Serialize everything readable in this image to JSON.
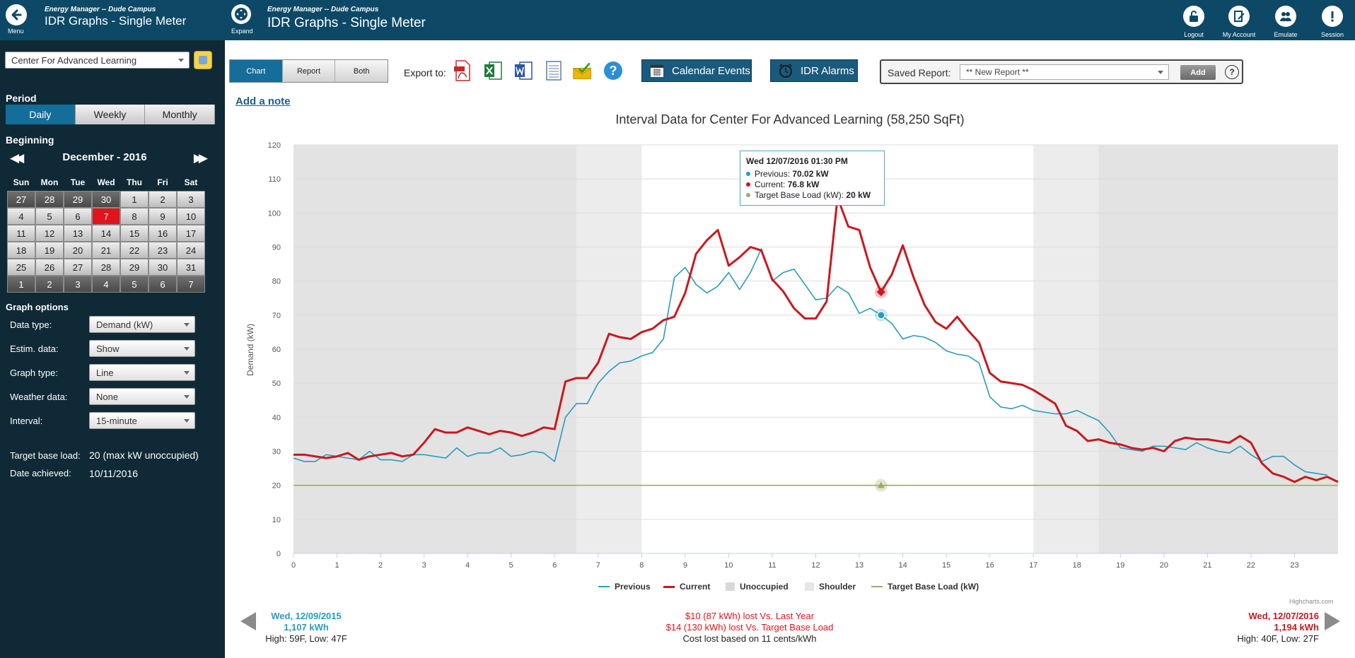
{
  "sidebar": {
    "menu_label": "Menu",
    "app_subtitle": "Energy Manager -- Dude Campus",
    "app_title": "IDR Graphs - Single Meter",
    "building": "Center For Advanced Learning",
    "period_heading": "Period",
    "period_tabs": [
      "Daily",
      "Weekly",
      "Monthly"
    ],
    "period_selected": "Daily",
    "beginning_heading": "Beginning",
    "calendar": {
      "month_label": "December - 2016",
      "prev_label": "◀◀",
      "next_label": "▶▶",
      "weekdays": [
        "Sun",
        "Mon",
        "Tue",
        "Wed",
        "Thu",
        "Fri",
        "Sat"
      ],
      "weeks": [
        [
          "27",
          "28",
          "29",
          "30",
          "1",
          "2",
          "3"
        ],
        [
          "4",
          "5",
          "6",
          "7",
          "8",
          "9",
          "10"
        ],
        [
          "11",
          "12",
          "13",
          "14",
          "15",
          "16",
          "17"
        ],
        [
          "18",
          "19",
          "20",
          "21",
          "22",
          "23",
          "24"
        ],
        [
          "25",
          "26",
          "27",
          "28",
          "29",
          "30",
          "31"
        ],
        [
          "1",
          "2",
          "3",
          "4",
          "5",
          "6",
          "7"
        ]
      ],
      "selected_day": "7"
    },
    "graph_options_heading": "Graph options",
    "options": [
      {
        "label": "Data type:",
        "value": "Demand (kW)"
      },
      {
        "label": "Estim. data:",
        "value": "Show"
      },
      {
        "label": "Graph type:",
        "value": "Line"
      },
      {
        "label": "Weather data:",
        "value": "None"
      },
      {
        "label": "Interval:",
        "value": "15-minute"
      }
    ],
    "target_base_load_label": "Target base load:",
    "target_base_load_value": "20 (max kW unoccupied)",
    "date_achieved_label": "Date achieved:",
    "date_achieved_value": "10/11/2016"
  },
  "header": {
    "expand_label": "Expand",
    "subtitle": "Energy Manager -- Dude Campus",
    "title": "IDR Graphs - Single Meter",
    "buttons": [
      "Logout",
      "My Account",
      "Emulate",
      "Session"
    ]
  },
  "toolbar": {
    "view_tabs": [
      "Chart",
      "Report",
      "Both"
    ],
    "view_selected": "Chart",
    "export_label": "Export to:",
    "export_icons": [
      "pdf-icon",
      "excel-icon",
      "word-icon",
      "csv-icon",
      "email-icon",
      "help-icon"
    ],
    "calendar_events": "Calendar Events",
    "idr_alarms": "IDR Alarms",
    "saved_report_label": "Saved Report:",
    "saved_report_value": "** New Report **",
    "add_label": "Add",
    "help_label": "?"
  },
  "add_note": "Add a note",
  "tooltip": {
    "header": "Wed 12/07/2016 01:30 PM",
    "rows": [
      {
        "label": "Previous:",
        "value": "70.02 kW",
        "color": "#2a9bbd"
      },
      {
        "label": "Current:",
        "value": "76.8 kW",
        "color": "#c8191f"
      },
      {
        "label": "Target Base Load (kW):",
        "value": "20 kW",
        "color": "#9aaf65"
      }
    ]
  },
  "legend": [
    "Previous",
    "Current",
    "Unoccupied",
    "Shoulder",
    "Target Base Load (kW)"
  ],
  "credit": "Highcharts.com",
  "footer": {
    "left": {
      "date": "Wed, 12/09/2015",
      "energy": "1,107 kWh",
      "weather": "High: 59F, Low: 47F"
    },
    "center": {
      "line1": "$10 (87 kWh) lost Vs. Last Year",
      "line2": "$14 (130 kWh) lost Vs. Target Base Load",
      "line3": "Cost lost based on 11 cents/kWh"
    },
    "right": {
      "date": "Wed, 12/07/2016",
      "energy": "1,194 kWh",
      "weather": "High: 40F, Low: 27F"
    }
  },
  "colors": {
    "previous": "#2a9bbd",
    "current": "#c8191f",
    "target": "#9aaf65",
    "unoccupied_band": "#e3e3e3",
    "shoulder_band": "#ececec",
    "header_bg": "#0d4966",
    "sidebar_bg": "#0f2a36"
  },
  "chart_data": {
    "type": "line",
    "title": "Interval Data for Center For Advanced Learning (58,250 SqFt)",
    "xlabel": "",
    "ylabel": "Demand (kW)",
    "xlim": [
      0,
      24
    ],
    "ylim": [
      0,
      120
    ],
    "x_ticks": [
      0,
      1,
      2,
      3,
      4,
      5,
      6,
      7,
      8,
      9,
      10,
      11,
      12,
      13,
      14,
      15,
      16,
      17,
      18,
      19,
      20,
      21,
      22,
      23
    ],
    "y_ticks": [
      0,
      10,
      20,
      30,
      40,
      50,
      60,
      70,
      80,
      90,
      100,
      110,
      120
    ],
    "bands": [
      {
        "name": "Unoccupied",
        "from": 0,
        "to": 6.5
      },
      {
        "name": "Shoulder",
        "from": 6.5,
        "to": 8
      },
      {
        "name": "Shoulder",
        "from": 17,
        "to": 18.5
      },
      {
        "name": "Unoccupied",
        "from": 18.5,
        "to": 24
      }
    ],
    "series": [
      {
        "name": "Previous",
        "interval_hours": 0.25,
        "values": [
          28,
          27,
          27,
          29,
          28.5,
          28,
          27.5,
          30,
          27.5,
          27.5,
          27,
          29,
          29,
          28.5,
          28,
          31,
          28.5,
          29.5,
          29.5,
          31,
          28.5,
          29,
          30,
          29.5,
          27,
          40,
          44,
          44,
          50,
          53.5,
          56,
          56.5,
          58,
          59,
          63,
          81,
          84,
          79,
          76.5,
          78.5,
          82.5,
          77.5,
          82.5,
          89.5,
          80,
          82.5,
          83.5,
          79,
          74.5,
          75,
          78.5,
          76.5,
          70.5,
          72,
          70,
          67.5,
          63,
          64,
          63.5,
          62,
          59.5,
          58.5,
          58,
          56,
          46,
          43,
          42.5,
          43.5,
          42,
          41.5,
          41,
          41,
          42,
          40.5,
          39,
          35.5,
          31,
          30.5,
          30,
          31.5,
          31.5,
          31,
          30.5,
          32.5,
          31,
          30,
          29.5,
          31.5,
          29,
          27,
          28.5,
          28.5,
          26,
          24,
          23.5,
          23
        ]
      },
      {
        "name": "Current",
        "interval_hours": 0.25,
        "values": [
          29,
          29,
          28.5,
          28,
          28.5,
          29.5,
          27.5,
          28.5,
          29,
          29.5,
          28.5,
          29,
          32.5,
          36.5,
          35.5,
          35.5,
          37,
          36,
          35,
          36,
          35.5,
          34.5,
          35.5,
          37,
          36.5,
          50.5,
          51.5,
          51.5,
          56,
          64.5,
          63.5,
          63,
          65,
          66,
          68.5,
          69.5,
          76.5,
          88,
          92,
          95,
          84.5,
          87,
          90,
          89,
          80.5,
          77,
          72,
          69,
          69,
          74,
          104.5,
          96,
          95,
          84,
          76.8,
          82,
          90.5,
          81,
          73,
          68,
          66,
          69.5,
          65.5,
          62,
          53,
          50.5,
          50,
          49.5,
          48,
          46,
          44,
          37.5,
          36,
          33,
          33.5,
          32.5,
          32,
          31,
          30.5,
          31,
          30,
          33,
          34,
          33.5,
          33.5,
          33,
          32.5,
          34.5,
          32.5,
          26.5,
          23.5,
          22.5,
          21,
          22.5,
          21.5,
          22.5,
          21
        ]
      },
      {
        "name": "Target Base Load (kW)",
        "values": [
          20,
          20
        ]
      }
    ],
    "highlight_x": 13.5
  }
}
